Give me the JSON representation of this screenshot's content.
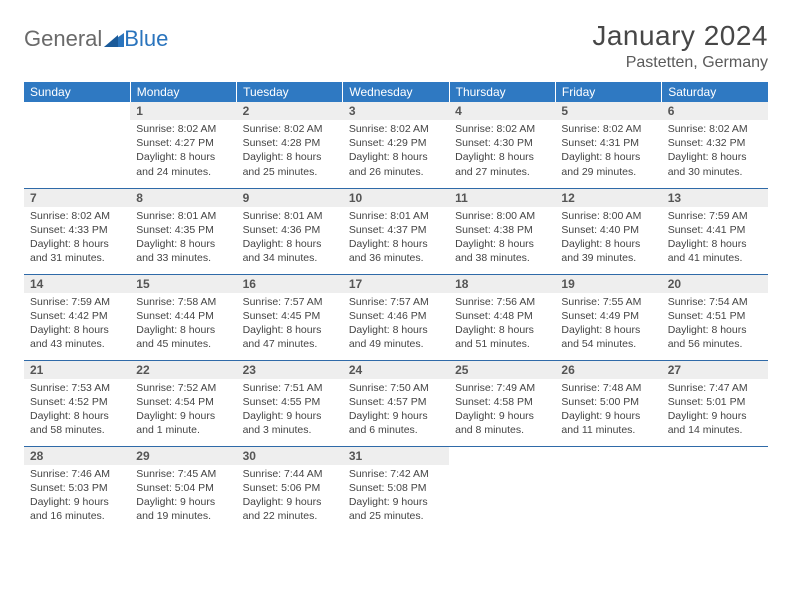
{
  "logo": {
    "general": "General",
    "blue": "Blue"
  },
  "title": "January 2024",
  "location": "Pastetten, Germany",
  "colors": {
    "header_bg": "#2f79c2",
    "header_text": "#ffffff",
    "daynum_bg": "#eeeeee",
    "daynum_text": "#555555",
    "body_text": "#444444",
    "border": "#2f6aa8",
    "logo_gray": "#6a6a6a",
    "logo_blue": "#2a74bd"
  },
  "weekdays": [
    "Sunday",
    "Monday",
    "Tuesday",
    "Wednesday",
    "Thursday",
    "Friday",
    "Saturday"
  ],
  "weeks": [
    [
      null,
      {
        "n": "1",
        "sr": "8:02 AM",
        "ss": "4:27 PM",
        "dl": "8 hours and 24 minutes."
      },
      {
        "n": "2",
        "sr": "8:02 AM",
        "ss": "4:28 PM",
        "dl": "8 hours and 25 minutes."
      },
      {
        "n": "3",
        "sr": "8:02 AM",
        "ss": "4:29 PM",
        "dl": "8 hours and 26 minutes."
      },
      {
        "n": "4",
        "sr": "8:02 AM",
        "ss": "4:30 PM",
        "dl": "8 hours and 27 minutes."
      },
      {
        "n": "5",
        "sr": "8:02 AM",
        "ss": "4:31 PM",
        "dl": "8 hours and 29 minutes."
      },
      {
        "n": "6",
        "sr": "8:02 AM",
        "ss": "4:32 PM",
        "dl": "8 hours and 30 minutes."
      }
    ],
    [
      {
        "n": "7",
        "sr": "8:02 AM",
        "ss": "4:33 PM",
        "dl": "8 hours and 31 minutes."
      },
      {
        "n": "8",
        "sr": "8:01 AM",
        "ss": "4:35 PM",
        "dl": "8 hours and 33 minutes."
      },
      {
        "n": "9",
        "sr": "8:01 AM",
        "ss": "4:36 PM",
        "dl": "8 hours and 34 minutes."
      },
      {
        "n": "10",
        "sr": "8:01 AM",
        "ss": "4:37 PM",
        "dl": "8 hours and 36 minutes."
      },
      {
        "n": "11",
        "sr": "8:00 AM",
        "ss": "4:38 PM",
        "dl": "8 hours and 38 minutes."
      },
      {
        "n": "12",
        "sr": "8:00 AM",
        "ss": "4:40 PM",
        "dl": "8 hours and 39 minutes."
      },
      {
        "n": "13",
        "sr": "7:59 AM",
        "ss": "4:41 PM",
        "dl": "8 hours and 41 minutes."
      }
    ],
    [
      {
        "n": "14",
        "sr": "7:59 AM",
        "ss": "4:42 PM",
        "dl": "8 hours and 43 minutes."
      },
      {
        "n": "15",
        "sr": "7:58 AM",
        "ss": "4:44 PM",
        "dl": "8 hours and 45 minutes."
      },
      {
        "n": "16",
        "sr": "7:57 AM",
        "ss": "4:45 PM",
        "dl": "8 hours and 47 minutes."
      },
      {
        "n": "17",
        "sr": "7:57 AM",
        "ss": "4:46 PM",
        "dl": "8 hours and 49 minutes."
      },
      {
        "n": "18",
        "sr": "7:56 AM",
        "ss": "4:48 PM",
        "dl": "8 hours and 51 minutes."
      },
      {
        "n": "19",
        "sr": "7:55 AM",
        "ss": "4:49 PM",
        "dl": "8 hours and 54 minutes."
      },
      {
        "n": "20",
        "sr": "7:54 AM",
        "ss": "4:51 PM",
        "dl": "8 hours and 56 minutes."
      }
    ],
    [
      {
        "n": "21",
        "sr": "7:53 AM",
        "ss": "4:52 PM",
        "dl": "8 hours and 58 minutes."
      },
      {
        "n": "22",
        "sr": "7:52 AM",
        "ss": "4:54 PM",
        "dl": "9 hours and 1 minute."
      },
      {
        "n": "23",
        "sr": "7:51 AM",
        "ss": "4:55 PM",
        "dl": "9 hours and 3 minutes."
      },
      {
        "n": "24",
        "sr": "7:50 AM",
        "ss": "4:57 PM",
        "dl": "9 hours and 6 minutes."
      },
      {
        "n": "25",
        "sr": "7:49 AM",
        "ss": "4:58 PM",
        "dl": "9 hours and 8 minutes."
      },
      {
        "n": "26",
        "sr": "7:48 AM",
        "ss": "5:00 PM",
        "dl": "9 hours and 11 minutes."
      },
      {
        "n": "27",
        "sr": "7:47 AM",
        "ss": "5:01 PM",
        "dl": "9 hours and 14 minutes."
      }
    ],
    [
      {
        "n": "28",
        "sr": "7:46 AM",
        "ss": "5:03 PM",
        "dl": "9 hours and 16 minutes."
      },
      {
        "n": "29",
        "sr": "7:45 AM",
        "ss": "5:04 PM",
        "dl": "9 hours and 19 minutes."
      },
      {
        "n": "30",
        "sr": "7:44 AM",
        "ss": "5:06 PM",
        "dl": "9 hours and 22 minutes."
      },
      {
        "n": "31",
        "sr": "7:42 AM",
        "ss": "5:08 PM",
        "dl": "9 hours and 25 minutes."
      },
      null,
      null,
      null
    ]
  ],
  "labels": {
    "sunrise": "Sunrise:",
    "sunset": "Sunset:",
    "daylight": "Daylight:"
  }
}
